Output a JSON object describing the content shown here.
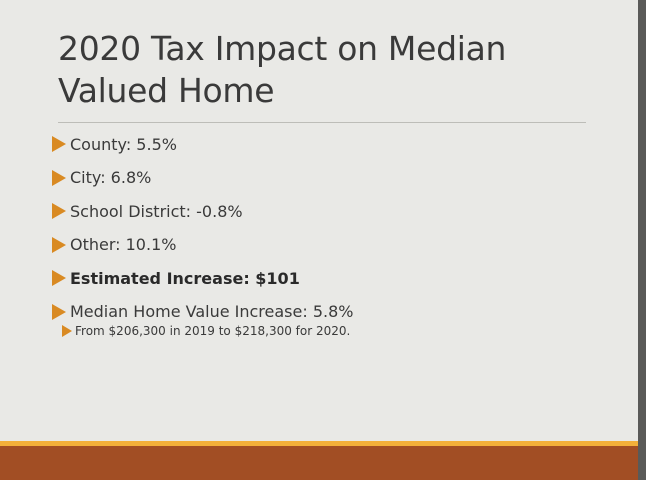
{
  "slide": {
    "title": "2020 Tax Impact on Median Valued Home",
    "bullets": [
      "County: 5.5%",
      "City: 6.8%",
      "School District: -0.8%",
      "Other: 10.1%",
      "Estimated Increase: $101",
      "Median Home Value Increase: 5.8%"
    ],
    "sub_bullet": "From $206,300 in 2019 to $218,300 for 2020."
  },
  "colors": {
    "bullet_accent": "#d98a22",
    "footer_band": "#a24e24",
    "footer_stripe": "#f3b03a",
    "background": "#e9e9e6"
  }
}
